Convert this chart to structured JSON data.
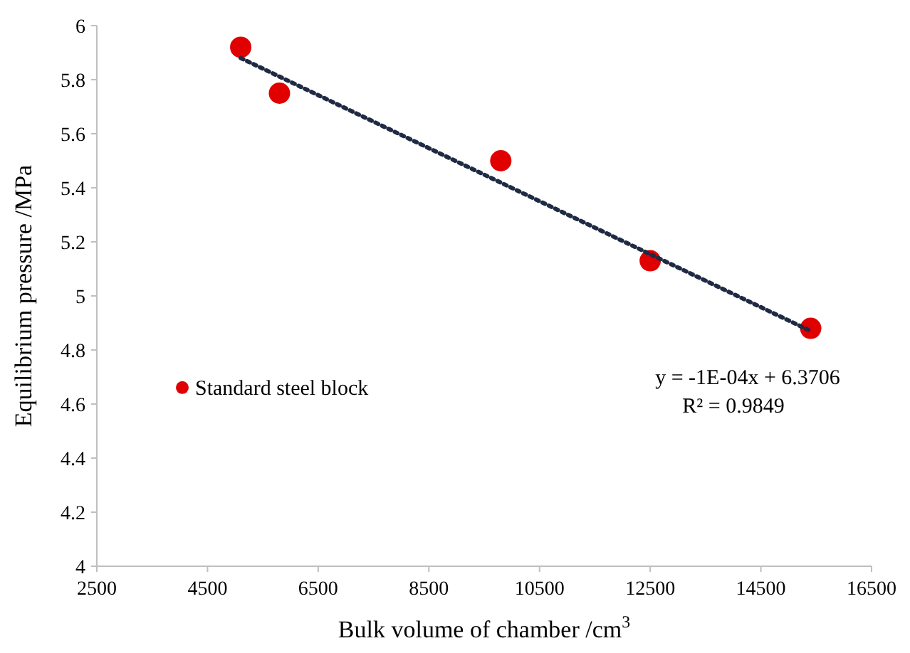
{
  "chart_data": {
    "type": "scatter",
    "xlabel": "Bulk volume of chamber /cm$^{3}$",
    "ylabel": "Equilibrium pressure /MPa",
    "xlim": [
      2500,
      16500
    ],
    "xticks": [
      2500,
      4500,
      6500,
      8500,
      10500,
      12500,
      14500,
      16500
    ],
    "ylim": [
      4,
      6
    ],
    "yticks": [
      4,
      4.2,
      4.4,
      4.6,
      4.8,
      5,
      5.2,
      5.4,
      5.6,
      5.8,
      6
    ],
    "grid": false,
    "legend": "left",
    "marker": "circle",
    "series": [
      {
        "name": "Standard steel block",
        "color": "#e00000",
        "x": [
          5100,
          5800,
          9800,
          12500,
          15400
        ],
        "values": [
          5.92,
          5.75,
          5.5,
          5.13,
          4.88
        ]
      },
      {
        "type": "line",
        "color": "#1f2a44",
        "line_style": "dotted",
        "marker": "none",
        "x": [
          5100,
          15400
        ],
        "values": [
          5.88,
          4.87
        ]
      }
    ],
    "annotations": [
      "y = -1E-04x + 6.3706",
      "R² = 0.9849"
    ]
  }
}
